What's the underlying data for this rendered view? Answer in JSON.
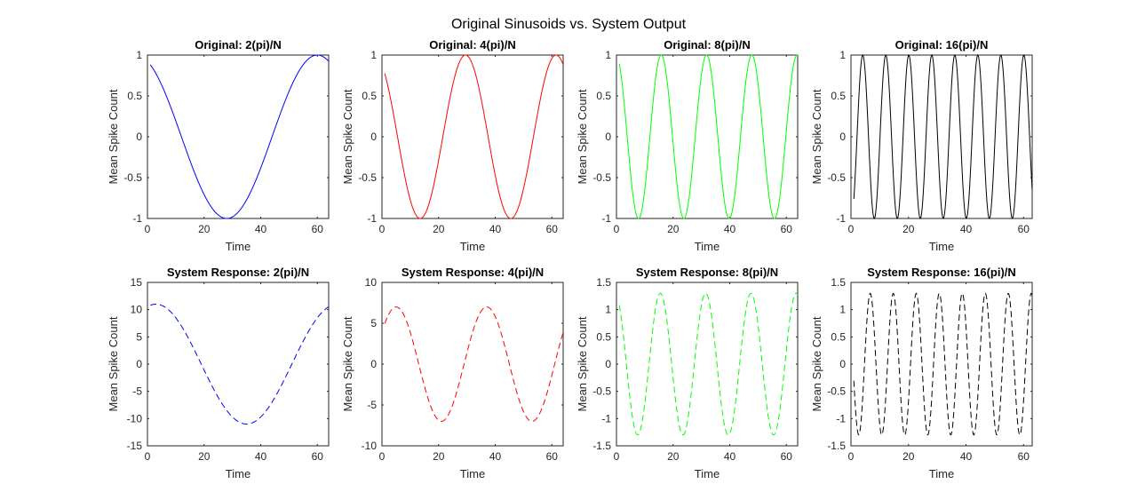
{
  "figure": {
    "title": "Original Sinusoids vs. System Output"
  },
  "chart_data": [
    {
      "type": "line",
      "title": "Original: 2(pi)/N",
      "xlabel": "Time",
      "ylabel": "Mean Spike Count",
      "xlim": [
        0,
        64
      ],
      "ylim": [
        -1,
        1
      ],
      "xticks": [
        "0",
        "20",
        "40",
        "60"
      ],
      "yticks": [
        "-1",
        "-0.5",
        "0",
        "0.5",
        "1"
      ],
      "line_style": "solid",
      "color": "#0000ff",
      "series": [
        {
          "x_start": 1,
          "x_end": 64,
          "amplitude": 1,
          "period": 64,
          "peak_at": 60
        }
      ]
    },
    {
      "type": "line",
      "title": "Original: 4(pi)/N",
      "xlabel": "Time",
      "ylabel": "Mean Spike Count",
      "xlim": [
        0,
        64
      ],
      "ylim": [
        -1,
        1
      ],
      "xticks": [
        "0",
        "20",
        "40",
        "60"
      ],
      "yticks": [
        "-1",
        "-0.5",
        "0",
        "0.5",
        "1"
      ],
      "line_style": "solid",
      "color": "#ff0000",
      "series": [
        {
          "x_start": 1,
          "x_end": 64,
          "amplitude": 1,
          "period": 32,
          "peak_at": 29.5
        }
      ]
    },
    {
      "type": "line",
      "title": "Original: 8(pi)/N",
      "xlabel": "Time",
      "ylabel": "Mean Spike Count",
      "xlim": [
        0,
        64
      ],
      "ylim": [
        -1,
        1
      ],
      "xticks": [
        "0",
        "20",
        "40",
        "60"
      ],
      "yticks": [
        "-1",
        "-0.5",
        "0",
        "0.5",
        "1"
      ],
      "line_style": "solid",
      "color": "#00ff00",
      "series": [
        {
          "x_start": 1,
          "x_end": 64,
          "amplitude": 1,
          "period": 16,
          "peak_at": 15.8
        }
      ]
    },
    {
      "type": "line",
      "title": "Original: 16(pi)/N",
      "xlabel": "Time",
      "ylabel": "Mean Spike Count",
      "xlim": [
        0,
        63
      ],
      "ylim": [
        -1,
        1
      ],
      "xticks": [
        "0",
        "20",
        "40",
        "60"
      ],
      "yticks": [
        "-1",
        "-0.5",
        "0",
        "0.5",
        "1"
      ],
      "line_style": "solid",
      "color": "#000000",
      "series": [
        {
          "x_start": 1,
          "x_end": 63,
          "amplitude": 1,
          "period": 8,
          "peak_at": 4.1
        }
      ]
    },
    {
      "type": "line",
      "title": "System Response: 2(pi)/N",
      "xlabel": "Time",
      "ylabel": "Mean Spike Count",
      "xlim": [
        0,
        64
      ],
      "ylim": [
        -15,
        15
      ],
      "xticks": [
        "0",
        "20",
        "40",
        "60"
      ],
      "yticks": [
        "-15",
        "-10",
        "-5",
        "0",
        "5",
        "10",
        "15"
      ],
      "line_style": "dashed",
      "color": "#0000ff",
      "series": [
        {
          "x_start": 1,
          "x_end": 64,
          "amplitude": 11,
          "period": 64,
          "peak_at": 3
        }
      ]
    },
    {
      "type": "line",
      "title": "System Response: 4(pi)/N",
      "xlabel": "Time",
      "ylabel": "Mean Spike Count",
      "xlim": [
        0,
        64
      ],
      "ylim": [
        -10,
        10
      ],
      "xticks": [
        "0",
        "20",
        "40",
        "60"
      ],
      "yticks": [
        "-10",
        "-5",
        "0",
        "5",
        "10"
      ],
      "line_style": "dashed",
      "color": "#ff0000",
      "series": [
        {
          "x_start": 1,
          "x_end": 64,
          "amplitude": 7,
          "period": 32,
          "peak_at": 5
        }
      ]
    },
    {
      "type": "line",
      "title": "System Response: 8(pi)/N",
      "xlabel": "Time",
      "ylabel": "Mean Spike Count",
      "xlim": [
        0,
        64
      ],
      "ylim": [
        -1.5,
        1.5
      ],
      "xticks": [
        "0",
        "20",
        "40",
        "60"
      ],
      "yticks": [
        "-1.5",
        "-1",
        "-0.5",
        "0",
        "0.5",
        "1",
        "1.5"
      ],
      "line_style": "dashed",
      "color": "#00ff00",
      "series": [
        {
          "x_start": 1,
          "x_end": 64,
          "amplitude": 1.3,
          "period": 16,
          "peak_at": 15.5
        }
      ]
    },
    {
      "type": "line",
      "title": "System Response: 16(pi)/N",
      "xlabel": "Time",
      "ylabel": "Mean Spike Count",
      "xlim": [
        0,
        63
      ],
      "ylim": [
        -1.5,
        1.5
      ],
      "xticks": [
        "0",
        "20",
        "40",
        "60"
      ],
      "yticks": [
        "-1.5",
        "-1",
        "-0.5",
        "0",
        "0.5",
        "1",
        "1.5"
      ],
      "line_style": "dashed",
      "color": "#000000",
      "series": [
        {
          "x_start": 1,
          "x_end": 63,
          "amplitude": 1.3,
          "period": 8,
          "peak_at": 6.7
        }
      ]
    }
  ]
}
